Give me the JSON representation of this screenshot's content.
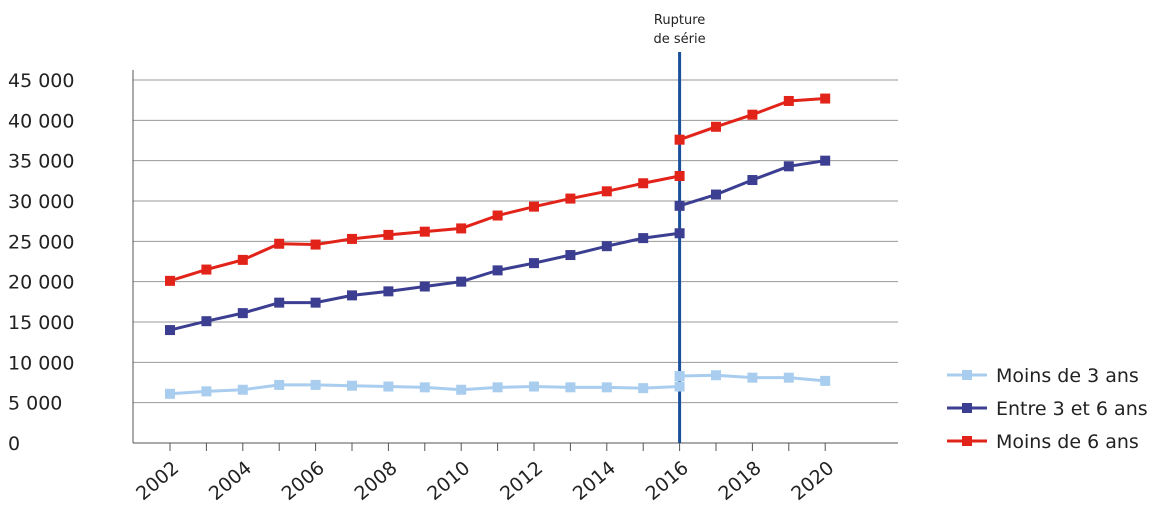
{
  "chart_data": {
    "type": "line",
    "title": "",
    "xlabel": "",
    "ylabel": "",
    "x": [
      2002,
      2003,
      2004,
      2005,
      2006,
      2007,
      2008,
      2009,
      2010,
      2011,
      2012,
      2013,
      2014,
      2015,
      2016,
      2017,
      2018,
      2019,
      2020
    ],
    "x_ticks": [
      "2002",
      "2004",
      "2006",
      "2008",
      "2010",
      "2012",
      "2014",
      "2016",
      "2018",
      "2020"
    ],
    "y_ticks": [
      "0",
      "5 000",
      "10 000",
      "15 000",
      "20 000",
      "25 000",
      "30 000",
      "35 000",
      "40 000",
      "45 000"
    ],
    "ylim": [
      0,
      45000
    ],
    "grid": "horizontal",
    "legend_position": "right",
    "series_break_x": 2016,
    "annotation": [
      "Rupture",
      "de série"
    ],
    "series": [
      {
        "name": "Moins de 3 ans",
        "color": "#a9cdee",
        "segments": [
          [
            [
              2002,
              6100
            ],
            [
              2003,
              6400
            ],
            [
              2004,
              6600
            ],
            [
              2005,
              7200
            ],
            [
              2006,
              7200
            ],
            [
              2007,
              7100
            ],
            [
              2008,
              7000
            ],
            [
              2009,
              6900
            ],
            [
              2010,
              6600
            ],
            [
              2011,
              6900
            ],
            [
              2012,
              7000
            ],
            [
              2013,
              6900
            ],
            [
              2014,
              6900
            ],
            [
              2015,
              6800
            ],
            [
              2016,
              7000
            ]
          ],
          [
            [
              2016,
              8300
            ],
            [
              2017,
              8400
            ],
            [
              2018,
              8100
            ],
            [
              2019,
              8100
            ],
            [
              2020,
              7700
            ]
          ]
        ]
      },
      {
        "name": "Entre 3 et 6 ans",
        "color": "#3c3f91",
        "segments": [
          [
            [
              2002,
              14000
            ],
            [
              2003,
              15100
            ],
            [
              2004,
              16100
            ],
            [
              2005,
              17400
            ],
            [
              2006,
              17400
            ],
            [
              2007,
              18300
            ],
            [
              2008,
              18800
            ],
            [
              2009,
              19400
            ],
            [
              2010,
              20000
            ],
            [
              2011,
              21400
            ],
            [
              2012,
              22300
            ],
            [
              2013,
              23300
            ],
            [
              2014,
              24400
            ],
            [
              2015,
              25400
            ],
            [
              2016,
              26000
            ]
          ],
          [
            [
              2016,
              29400
            ],
            [
              2017,
              30800
            ],
            [
              2018,
              32600
            ],
            [
              2019,
              34300
            ],
            [
              2020,
              35000
            ]
          ]
        ]
      },
      {
        "name": "Moins de 6 ans",
        "color": "#e2231a",
        "segments": [
          [
            [
              2002,
              20100
            ],
            [
              2003,
              21500
            ],
            [
              2004,
              22700
            ],
            [
              2005,
              24700
            ],
            [
              2006,
              24600
            ],
            [
              2007,
              25300
            ],
            [
              2008,
              25800
            ],
            [
              2009,
              26200
            ],
            [
              2010,
              26600
            ],
            [
              2011,
              28200
            ],
            [
              2012,
              29300
            ],
            [
              2013,
              30300
            ],
            [
              2014,
              31200
            ],
            [
              2015,
              32200
            ],
            [
              2016,
              33100
            ]
          ],
          [
            [
              2016,
              37600
            ],
            [
              2017,
              39200
            ],
            [
              2018,
              40700
            ],
            [
              2019,
              42400
            ],
            [
              2020,
              42700
            ]
          ]
        ]
      }
    ]
  },
  "colors": {
    "grid": "#9a9a9a",
    "axis": "#555555",
    "break_line": "#1a4f9c"
  }
}
